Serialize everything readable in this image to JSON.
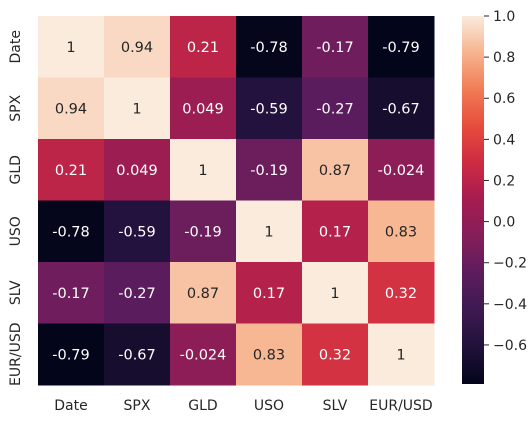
{
  "chart_data": {
    "type": "heatmap",
    "title": "",
    "xlabel": "",
    "ylabel": "",
    "x_categories": [
      "Date",
      "SPX",
      "GLD",
      "USO",
      "SLV",
      "EUR/USD"
    ],
    "y_categories": [
      "Date",
      "SPX",
      "GLD",
      "USO",
      "SLV",
      "EUR/USD"
    ],
    "values": [
      [
        1,
        0.94,
        0.21,
        -0.78,
        -0.17,
        -0.79
      ],
      [
        0.94,
        1,
        0.049,
        -0.59,
        -0.27,
        -0.67
      ],
      [
        0.21,
        0.049,
        1,
        -0.19,
        0.87,
        -0.024
      ],
      [
        -0.78,
        -0.59,
        -0.19,
        1,
        0.17,
        0.83
      ],
      [
        -0.17,
        -0.27,
        0.87,
        0.17,
        1,
        0.32
      ],
      [
        -0.79,
        -0.67,
        -0.024,
        0.83,
        0.32,
        1
      ]
    ],
    "annotations": [
      [
        "1",
        "0.94",
        "0.21",
        "-0.78",
        "-0.17",
        "-0.79"
      ],
      [
        "0.94",
        "1",
        "0.049",
        "-0.59",
        "-0.27",
        "-0.67"
      ],
      [
        "0.21",
        "0.049",
        "1",
        "-0.19",
        "0.87",
        "-0.024"
      ],
      [
        "-0.78",
        "-0.59",
        "-0.19",
        "1",
        "0.17",
        "0.83"
      ],
      [
        "-0.17",
        "-0.27",
        "0.87",
        "0.17",
        "1",
        "0.32"
      ],
      [
        "-0.79",
        "-0.67",
        "-0.024",
        "0.83",
        "0.32",
        "1"
      ]
    ],
    "colormap": "rocket",
    "color_range": [
      -0.79,
      1.0
    ],
    "colorbar_ticks": [
      1.0,
      0.8,
      0.6,
      0.4,
      0.2,
      0.0,
      -0.2,
      -0.4,
      -0.6
    ],
    "colorbar_tick_labels": [
      "1.0",
      "0.8",
      "0.6",
      "0.4",
      "0.2",
      "0.0",
      "−0.2",
      "−0.4",
      "−0.6"
    ],
    "colorbar_placement": "right",
    "grid": false
  }
}
